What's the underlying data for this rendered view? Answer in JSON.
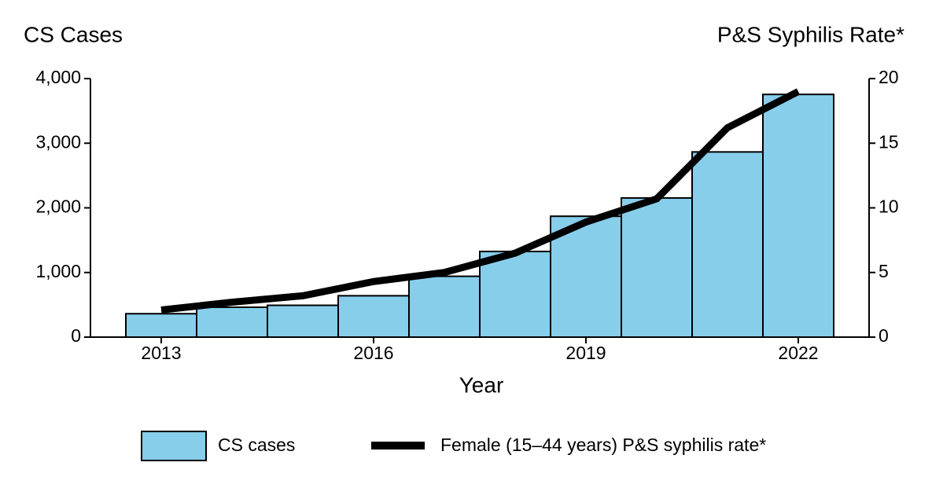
{
  "chart_data": {
    "type": "bar",
    "y_label": "CS Cases",
    "y2_label": "P&S Syphilis Rate*",
    "x_label": "Year",
    "x": [
      2013,
      2014,
      2015,
      2016,
      2017,
      2018,
      2019,
      2020,
      2021,
      2022
    ],
    "series": [
      {
        "name": "CS cases",
        "type": "bar",
        "color": "#87ceeb",
        "values": [
          362,
          462,
          492,
          640,
          941,
          1325,
          1870,
          2153,
          2865,
          3755
        ]
      },
      {
        "name": "Female (15–44 years) P&S syphilis rate*",
        "type": "line",
        "axis": "y2",
        "color": "#000000",
        "values": [
          2.1,
          2.7,
          3.2,
          4.3,
          5.0,
          6.5,
          8.9,
          10.7,
          16.2,
          19.0
        ]
      }
    ],
    "xlim": [
      2012,
      2023
    ],
    "xticks": [
      2013,
      2016,
      2019,
      2022
    ],
    "ylim": [
      0,
      4000
    ],
    "yticks": [
      0,
      {
        "value": 1000,
        "label": "1,000"
      },
      {
        "value": 2000,
        "label": "2,000"
      },
      {
        "value": 3000,
        "label": "3,000"
      },
      {
        "value": 4000,
        "label": "4,000"
      }
    ],
    "y2lim": [
      0,
      20
    ],
    "y2ticks": [
      0,
      5,
      10,
      15,
      20
    ],
    "grid": false
  }
}
